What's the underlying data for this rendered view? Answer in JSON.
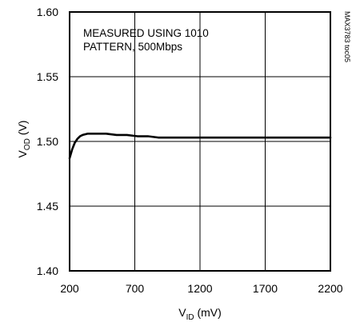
{
  "chart_data": {
    "type": "line",
    "annotation": [
      "MEASURED USING 1010",
      "PATTERN, 500Mbps"
    ],
    "side_label": "MAX3783 toc05",
    "xlabel": {
      "main": "V",
      "sub": "ID",
      "unit": " (mV)"
    },
    "ylabel": {
      "main": "V",
      "sub": "OD",
      "unit": " (V)"
    },
    "xlim": [
      200,
      2200
    ],
    "ylim": [
      1.4,
      1.6
    ],
    "x_ticks": [
      200,
      700,
      1200,
      1700,
      2200
    ],
    "x_tick_labels": [
      "200",
      "700",
      "1200",
      "1700",
      "2200"
    ],
    "y_ticks": [
      1.4,
      1.45,
      1.5,
      1.55,
      1.6
    ],
    "y_tick_labels": [
      "1.40",
      "1.45",
      "1.50",
      "1.55",
      "1.60"
    ],
    "grid": true,
    "series": [
      {
        "x": [
          200,
          220,
          240,
          260,
          280,
          300,
          340,
          380,
          420,
          480,
          560,
          640,
          720,
          800,
          880,
          960,
          1040,
          1200,
          1400,
          1600,
          1800,
          2000,
          2200
        ],
        "y": [
          1.487,
          1.494,
          1.499,
          1.502,
          1.504,
          1.505,
          1.506,
          1.506,
          1.506,
          1.506,
          1.505,
          1.505,
          1.504,
          1.504,
          1.503,
          1.503,
          1.503,
          1.503,
          1.503,
          1.503,
          1.503,
          1.503,
          1.503
        ],
        "color": "#000000"
      }
    ]
  }
}
